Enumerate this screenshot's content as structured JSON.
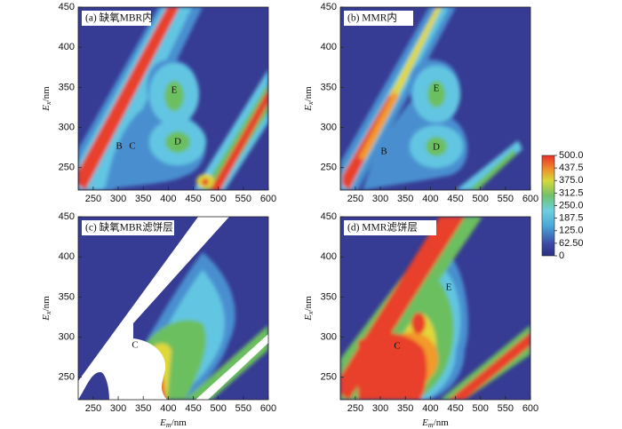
{
  "chart_data": [
    {
      "type": "contour",
      "panel_label": "(a) 缺氧MBR内",
      "annotations": [
        "E",
        "D",
        "B",
        "C"
      ],
      "y_label": {
        "main": "E",
        "sub": "x",
        "unit": "/nm"
      },
      "xlim": [
        220,
        600
      ],
      "xticks": [
        250,
        300,
        350,
        400,
        450,
        500,
        550,
        600
      ],
      "ylim": [
        222,
        450
      ],
      "yticks": [
        250,
        300,
        350,
        400,
        450
      ]
    },
    {
      "type": "contour",
      "panel_label": "(b) MMR内",
      "annotations": [
        "E",
        "D",
        "B"
      ],
      "y_label": {
        "main": "E",
        "sub": "x",
        "unit": "/nm"
      },
      "xlim": [
        220,
        600
      ],
      "xticks": [
        250,
        300,
        350,
        400,
        450,
        500,
        550,
        600
      ],
      "ylim": [
        222,
        450
      ],
      "yticks": [
        250,
        300,
        350,
        400,
        450
      ]
    },
    {
      "type": "contour",
      "panel_label": "(c) 缺氧MBR滤饼层",
      "annotations": [
        "C"
      ],
      "y_label": {
        "main": "E",
        "sub": "x",
        "unit": "/nm"
      },
      "x_label": {
        "main": "E",
        "sub": "m",
        "unit": "/nm"
      },
      "xlim": [
        220,
        600
      ],
      "xticks": [
        250,
        300,
        350,
        400,
        450,
        500,
        550,
        600
      ],
      "ylim": [
        222,
        450
      ],
      "yticks": [
        250,
        300,
        350,
        400,
        450
      ]
    },
    {
      "type": "contour",
      "panel_label": "(d) MMR滤饼层",
      "annotations": [
        "E",
        "C"
      ],
      "y_label": {
        "main": "E",
        "sub": "x",
        "unit": "/nm"
      },
      "x_label": {
        "main": "E",
        "sub": "m",
        "unit": "/nm"
      },
      "xlim": [
        220,
        600
      ],
      "xticks": [
        250,
        300,
        350,
        400,
        450,
        500,
        550,
        600
      ],
      "ylim": [
        222,
        450
      ],
      "yticks": [
        250,
        300,
        350,
        400,
        450
      ]
    }
  ],
  "colorbar": {
    "lim": [
      0,
      500
    ],
    "ticks": [
      {
        "value": 500,
        "label": "500.0"
      },
      {
        "value": 437.5,
        "label": "437.5"
      },
      {
        "value": 375,
        "label": "375.0"
      },
      {
        "value": 312.5,
        "label": "312.5"
      },
      {
        "value": 250,
        "label": "250.0"
      },
      {
        "value": 187.5,
        "label": "187.5"
      },
      {
        "value": 125,
        "label": "125.0"
      },
      {
        "value": 62.5,
        "label": "62.50"
      },
      0
    ]
  }
}
